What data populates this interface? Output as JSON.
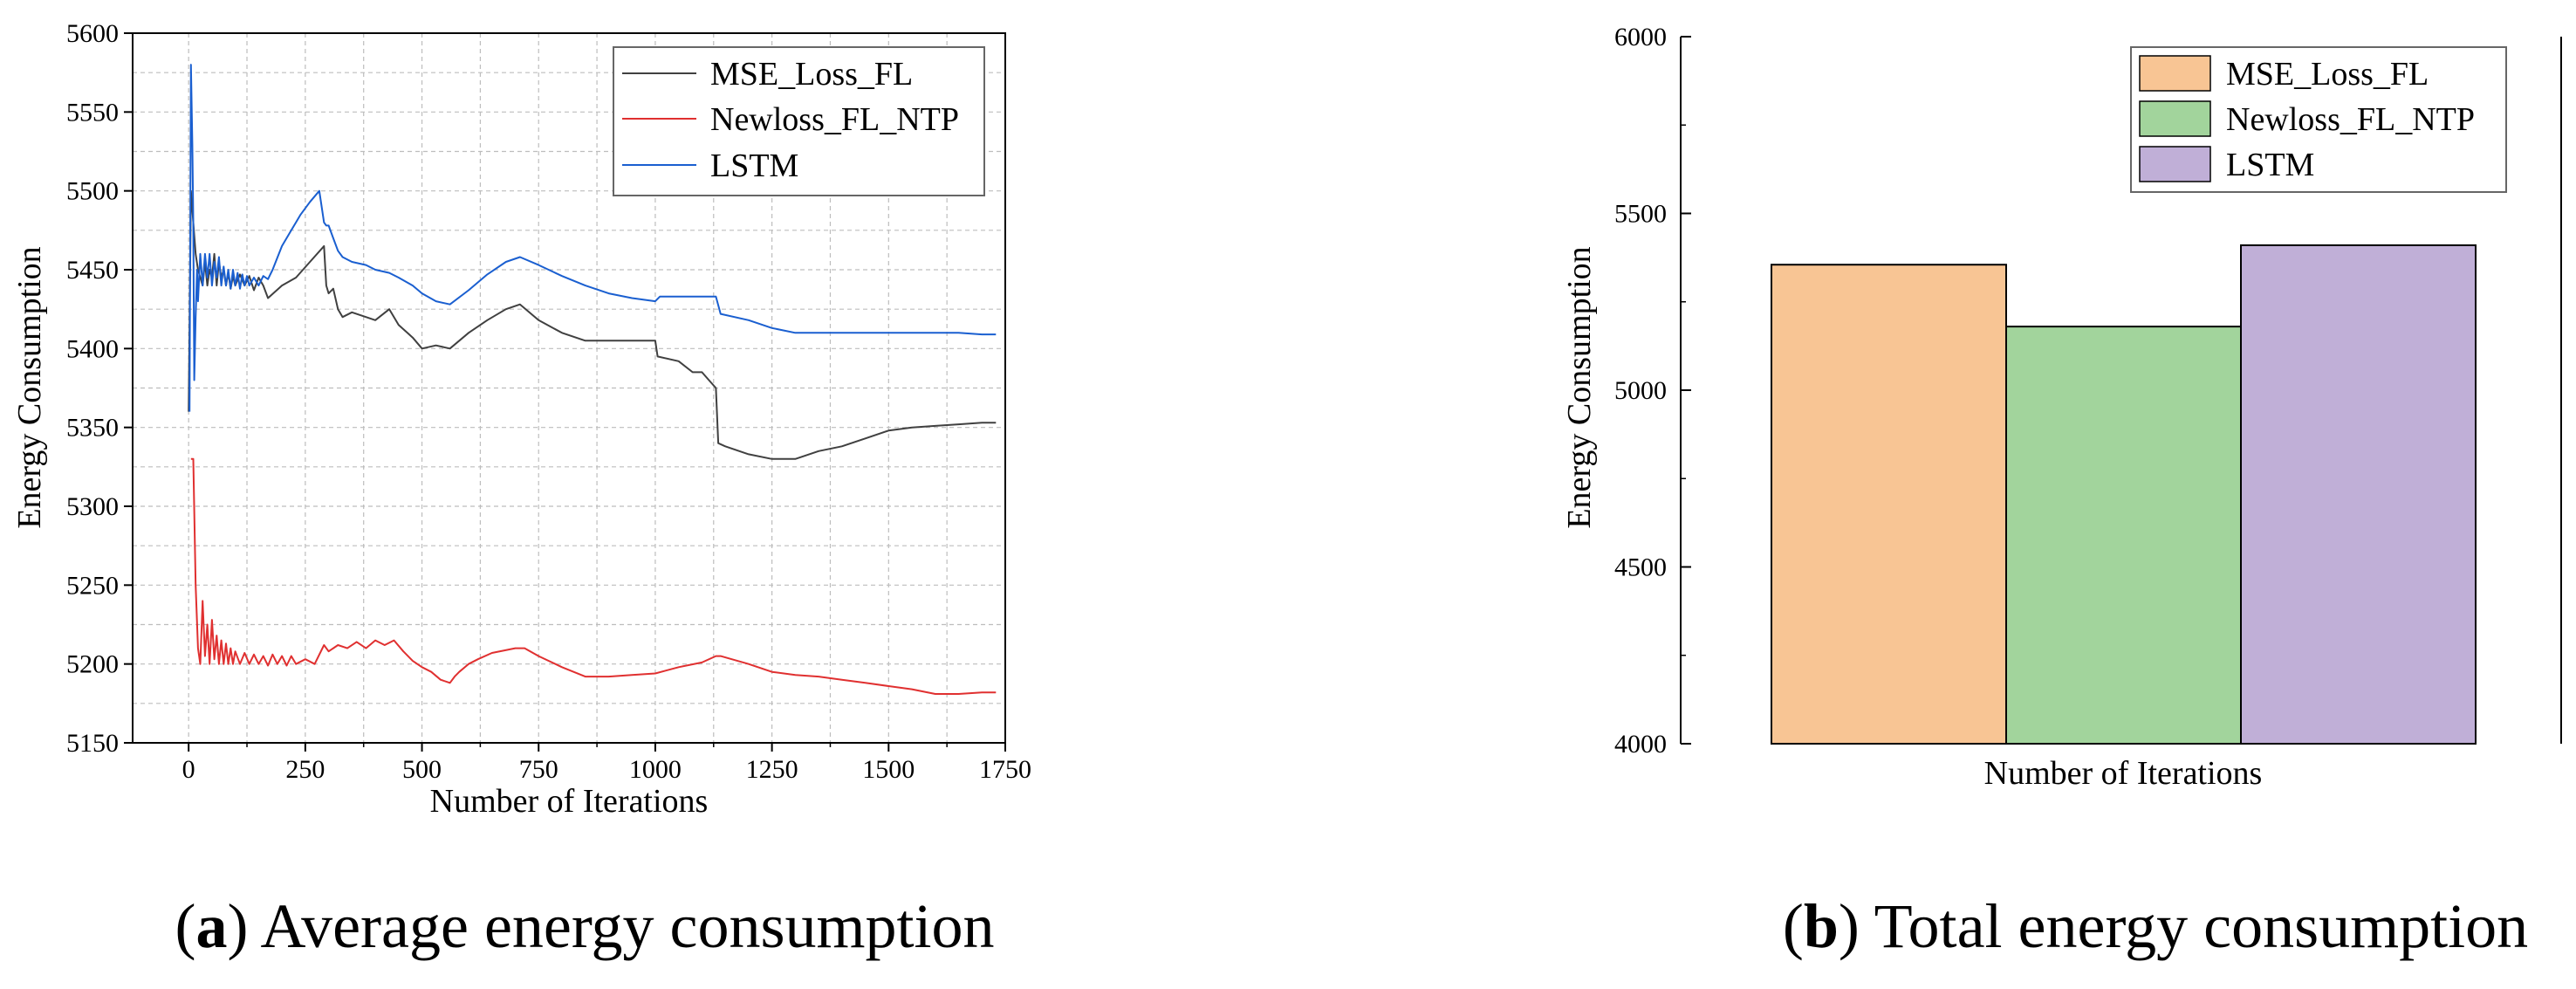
{
  "chart_data": [
    {
      "type": "line",
      "caption_letter": "a",
      "caption_text": " Average energy consumption",
      "xlabel": "Number of Iterations",
      "ylabel": "Energy Consumption",
      "xlim": [
        -120,
        1750
      ],
      "ylim": [
        5150,
        5600
      ],
      "xticks": [
        0,
        250,
        500,
        750,
        1000,
        1250,
        1500,
        1750
      ],
      "yticks": [
        5150,
        5200,
        5250,
        5300,
        5350,
        5400,
        5450,
        5500,
        5550,
        5600
      ],
      "grid": true,
      "legend_position": "top-right",
      "series": [
        {
          "name": "MSE_Loss_FL",
          "color": "#404040",
          "x": [
            0,
            5,
            10,
            15,
            20,
            25,
            30,
            35,
            40,
            45,
            50,
            55,
            60,
            65,
            70,
            75,
            80,
            85,
            90,
            95,
            100,
            110,
            120,
            130,
            140,
            150,
            160,
            170,
            200,
            230,
            260,
            290,
            295,
            300,
            310,
            320,
            330,
            350,
            380,
            400,
            430,
            450,
            480,
            500,
            530,
            560,
            600,
            640,
            680,
            710,
            750,
            800,
            850,
            900,
            950,
            1000,
            1005,
            1050,
            1080,
            1100,
            1115,
            1130,
            1135,
            1150,
            1200,
            1250,
            1300,
            1350,
            1400,
            1450,
            1500,
            1550,
            1600,
            1650,
            1700,
            1730
          ],
          "y": [
            5360,
            5500,
            5480,
            5460,
            5450,
            5445,
            5440,
            5455,
            5440,
            5450,
            5445,
            5460,
            5440,
            5455,
            5445,
            5450,
            5440,
            5448,
            5438,
            5446,
            5440,
            5447,
            5440,
            5446,
            5437,
            5445,
            5440,
            5432,
            5440,
            5445,
            5455,
            5465,
            5440,
            5435,
            5438,
            5425,
            5420,
            5423,
            5420,
            5418,
            5425,
            5415,
            5407,
            5400,
            5402,
            5400,
            5410,
            5418,
            5425,
            5428,
            5418,
            5410,
            5405,
            5405,
            5405,
            5405,
            5395,
            5392,
            5385,
            5385,
            5380,
            5375,
            5340,
            5338,
            5333,
            5330,
            5330,
            5335,
            5338,
            5343,
            5348,
            5350,
            5351,
            5352,
            5353,
            5353
          ]
        },
        {
          "name": "Newloss_FL_NTP",
          "color": "#e03030",
          "x": [
            5,
            10,
            15,
            20,
            25,
            30,
            35,
            40,
            45,
            50,
            55,
            60,
            65,
            70,
            75,
            80,
            85,
            90,
            95,
            100,
            110,
            120,
            130,
            140,
            150,
            160,
            170,
            180,
            190,
            200,
            210,
            220,
            230,
            250,
            270,
            290,
            300,
            320,
            340,
            360,
            380,
            400,
            420,
            440,
            460,
            480,
            500,
            520,
            540,
            560,
            570,
            580,
            600,
            620,
            650,
            700,
            720,
            750,
            800,
            850,
            900,
            950,
            1000,
            1050,
            1100,
            1130,
            1140,
            1200,
            1250,
            1300,
            1350,
            1400,
            1450,
            1500,
            1550,
            1600,
            1650,
            1700,
            1730
          ],
          "y": [
            5330,
            5330,
            5250,
            5210,
            5200,
            5240,
            5205,
            5225,
            5200,
            5228,
            5203,
            5218,
            5200,
            5215,
            5200,
            5213,
            5200,
            5210,
            5200,
            5208,
            5200,
            5207,
            5200,
            5206,
            5200,
            5205,
            5199,
            5206,
            5200,
            5205,
            5199,
            5205,
            5200,
            5203,
            5200,
            5212,
            5208,
            5212,
            5210,
            5214,
            5210,
            5215,
            5212,
            5215,
            5208,
            5202,
            5198,
            5195,
            5190,
            5188,
            5192,
            5195,
            5200,
            5203,
            5207,
            5210,
            5210,
            5205,
            5198,
            5192,
            5192,
            5193,
            5194,
            5198,
            5201,
            5205,
            5205,
            5200,
            5195,
            5193,
            5192,
            5190,
            5188,
            5186,
            5184,
            5181,
            5181,
            5182,
            5182
          ]
        },
        {
          "name": "LSTM",
          "color": "#1a5fd0",
          "x": [
            2,
            5,
            8,
            10,
            12,
            15,
            18,
            20,
            25,
            30,
            35,
            40,
            45,
            50,
            55,
            60,
            65,
            70,
            75,
            80,
            85,
            90,
            95,
            100,
            105,
            110,
            115,
            120,
            125,
            130,
            140,
            150,
            160,
            170,
            180,
            200,
            220,
            240,
            260,
            280,
            290,
            295,
            300,
            310,
            320,
            330,
            350,
            380,
            400,
            430,
            450,
            480,
            500,
            530,
            560,
            600,
            640,
            680,
            710,
            750,
            800,
            850,
            900,
            950,
            1000,
            1010,
            1050,
            1100,
            1130,
            1140,
            1200,
            1250,
            1300,
            1400,
            1500,
            1600,
            1650,
            1700,
            1730
          ],
          "y": [
            5360,
            5580,
            5530,
            5480,
            5380,
            5420,
            5450,
            5430,
            5460,
            5440,
            5460,
            5445,
            5460,
            5440,
            5455,
            5445,
            5458,
            5440,
            5452,
            5440,
            5450,
            5438,
            5450,
            5440,
            5448,
            5438,
            5447,
            5440,
            5446,
            5440,
            5445,
            5440,
            5446,
            5444,
            5450,
            5465,
            5475,
            5485,
            5493,
            5500,
            5480,
            5478,
            5478,
            5470,
            5462,
            5458,
            5455,
            5453,
            5450,
            5448,
            5445,
            5440,
            5435,
            5430,
            5428,
            5437,
            5447,
            5455,
            5458,
            5453,
            5446,
            5440,
            5435,
            5432,
            5430,
            5433,
            5433,
            5433,
            5433,
            5422,
            5418,
            5413,
            5410,
            5410,
            5410,
            5410,
            5410,
            5409,
            5409
          ]
        }
      ]
    },
    {
      "type": "bar",
      "caption_letter": "b",
      "caption_text": " Total energy consumption",
      "xlabel": "Number of Iterations",
      "ylabel": "Energy Consumption",
      "ylim": [
        4000,
        6000
      ],
      "yticks": [
        4000,
        4500,
        5000,
        5500,
        6000
      ],
      "grid": false,
      "legend_position": "top-right",
      "categories": [
        "MSE_Loss_FL",
        "Newloss_FL_NTP",
        "LSTM"
      ],
      "values": [
        5355,
        5180,
        5410
      ],
      "colors": [
        "#f8c594",
        "#a2d49c",
        "#c0afd7"
      ]
    }
  ]
}
